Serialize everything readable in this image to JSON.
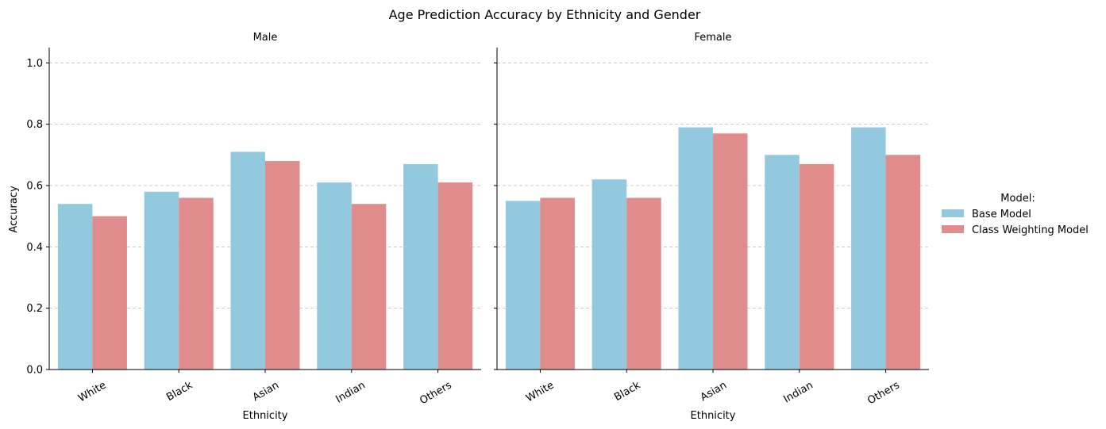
{
  "chart_data": {
    "type": "bar",
    "title": "Age Prediction Accuracy by Ethnicity and Gender",
    "ylabel": "Accuracy",
    "ylim": [
      0,
      1.05
    ],
    "yticks": [
      "0.0",
      "0.2",
      "0.4",
      "0.6",
      "0.8",
      "1.0"
    ],
    "ytick_values": [
      0,
      0.2,
      0.4,
      0.6,
      0.8,
      1.0
    ],
    "grid": "horizontal dashed",
    "legend": {
      "title": "Model:",
      "placement": "right",
      "entries": [
        "Base Model",
        "Class Weighting Model"
      ]
    },
    "colors": {
      "Base Model": "#92C9DF",
      "Class Weighting Model": "#E08C8C",
      "grid": "#C8C8C8"
    },
    "panels": [
      {
        "title": "Male",
        "xlabel": "Ethnicity",
        "categories": [
          "White",
          "Black",
          "Asian",
          "Indian",
          "Others"
        ],
        "series": [
          {
            "name": "Base Model",
            "values": [
              0.54,
              0.58,
              0.71,
              0.61,
              0.67
            ]
          },
          {
            "name": "Class Weighting Model",
            "values": [
              0.5,
              0.56,
              0.68,
              0.54,
              0.61
            ]
          }
        ]
      },
      {
        "title": "Female",
        "xlabel": "Ethnicity",
        "categories": [
          "White",
          "Black",
          "Asian",
          "Indian",
          "Others"
        ],
        "series": [
          {
            "name": "Base Model",
            "values": [
              0.55,
              0.62,
              0.79,
              0.7,
              0.79
            ]
          },
          {
            "name": "Class Weighting Model",
            "values": [
              0.56,
              0.56,
              0.77,
              0.67,
              0.7
            ]
          }
        ]
      }
    ]
  }
}
